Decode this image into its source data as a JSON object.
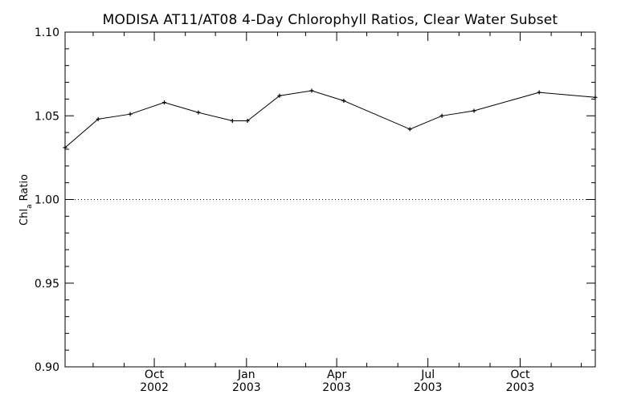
{
  "chart_data": {
    "type": "line",
    "title": "MODISA AT11/AT08 4-Day Chlorophyll Ratios, Clear Water Subset",
    "xlabel": "",
    "ylabel": "Chl",
    "ylabel_subscript": "a",
    "ylabel_suffix": " Ratio",
    "xlim": [
      "2002-07-04",
      "2003-12-15"
    ],
    "ylim": [
      0.9,
      1.1
    ],
    "y_ticks": [
      "0.90",
      "0.95",
      "1.00",
      "1.05",
      "1.10"
    ],
    "y_minor_step": 0.01,
    "x_ticks": [
      {
        "date": "2002-10-01",
        "month": "Oct",
        "year": "2002"
      },
      {
        "date": "2003-01-01",
        "month": "Jan",
        "year": "2003"
      },
      {
        "date": "2003-04-01",
        "month": "Apr",
        "year": "2003"
      },
      {
        "date": "2003-07-01",
        "month": "Jul",
        "year": "2003"
      },
      {
        "date": "2003-10-01",
        "month": "Oct",
        "year": "2003"
      }
    ],
    "x_minor_ticks": [
      "2002-08-01",
      "2002-09-01",
      "2002-11-01",
      "2002-12-01",
      "2003-02-01",
      "2003-03-01",
      "2003-05-01",
      "2003-06-01",
      "2003-08-01",
      "2003-09-01",
      "2003-11-01",
      "2003-12-01"
    ],
    "reference_line": {
      "y": 1.0,
      "style": "dotted"
    },
    "series": [
      {
        "x": [
          "2002-07-04",
          "2002-08-06",
          "2002-09-07",
          "2002-10-11",
          "2002-11-14",
          "2002-12-18",
          "2003-01-02",
          "2003-02-03",
          "2003-03-07",
          "2003-04-08",
          "2003-06-13",
          "2003-07-15",
          "2003-08-16",
          "2003-10-20",
          "2003-12-15"
        ],
        "values": [
          1.031,
          1.048,
          1.051,
          1.058,
          1.052,
          1.047,
          1.047,
          1.062,
          1.065,
          1.059,
          1.042,
          1.05,
          1.053,
          1.064,
          1.061
        ]
      }
    ],
    "grid": false,
    "line_color": "#000000",
    "marker": "plus"
  }
}
